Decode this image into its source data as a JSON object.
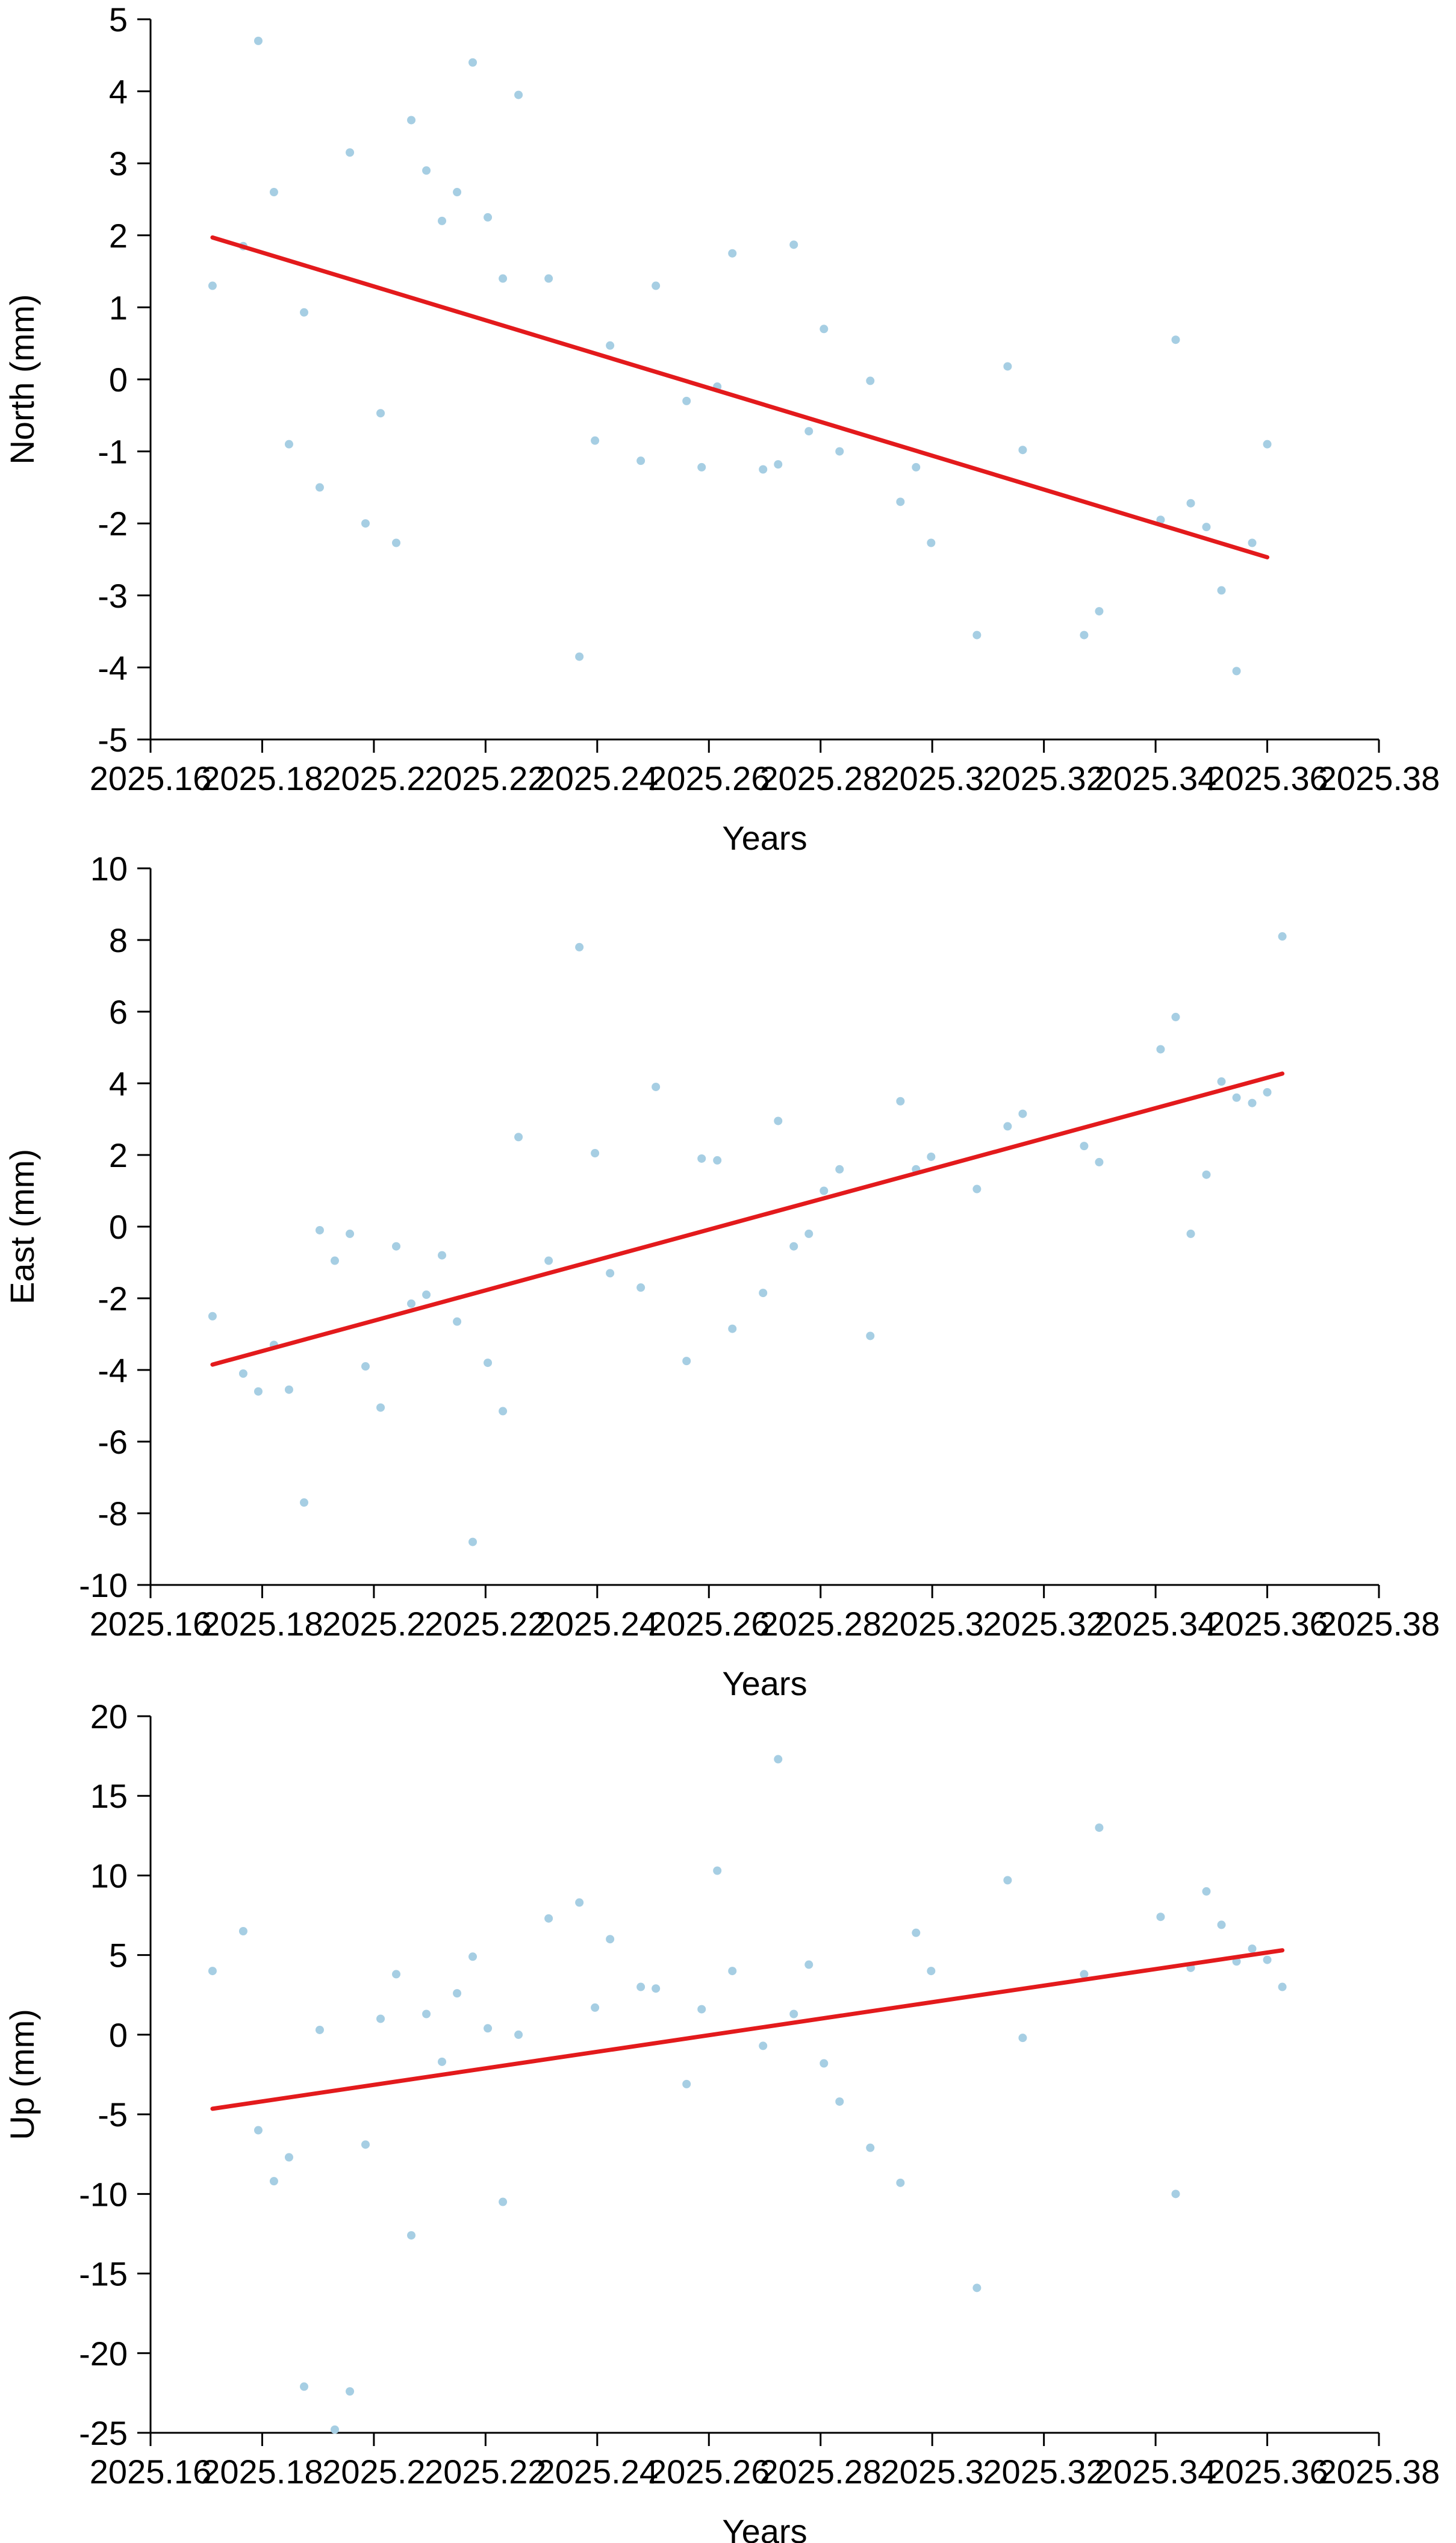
{
  "colors": {
    "points": "#a6cee3",
    "trend": "#e31a1c",
    "axis": "#000000"
  },
  "chart_data": [
    {
      "type": "scatter",
      "xlabel": "Years",
      "ylabel": "North (mm)",
      "xlim": [
        2025.16,
        2025.38
      ],
      "ylim": [
        -5,
        5
      ],
      "xticks": [
        2025.16,
        2025.18,
        2025.2,
        2025.22,
        2025.24,
        2025.26,
        2025.28,
        2025.3,
        2025.32,
        2025.34,
        2025.36,
        2025.38
      ],
      "xtick_labels": [
        "2025.16",
        "2025.18",
        "2025.2",
        "2025.22",
        "2025.24",
        "2025.26",
        "2025.28",
        "2025.3",
        "2025.32",
        "2025.34",
        "2025.36",
        "2025.38"
      ],
      "yticks": [
        -5,
        -4,
        -3,
        -2,
        -1,
        0,
        1,
        2,
        3,
        4,
        5
      ],
      "ytick_labels": [
        "-5",
        "-4",
        "-3",
        "-2",
        "-1",
        "0",
        "1",
        "2",
        "3",
        "4",
        "5"
      ],
      "points": [
        [
          2025.1711,
          1.3
        ],
        [
          2025.1766,
          1.85
        ],
        [
          2025.1793,
          4.7
        ],
        [
          2025.1821,
          2.6
        ],
        [
          2025.1848,
          -0.9
        ],
        [
          2025.1875,
          0.93
        ],
        [
          2025.1903,
          -1.5
        ],
        [
          2025.1957,
          3.15
        ],
        [
          2025.1985,
          -2.0
        ],
        [
          2025.2012,
          -0.47
        ],
        [
          2025.204,
          -2.27
        ],
        [
          2025.2067,
          3.6
        ],
        [
          2025.2094,
          2.9
        ],
        [
          2025.2122,
          2.2
        ],
        [
          2025.2149,
          2.6
        ],
        [
          2025.2177,
          4.4
        ],
        [
          2025.2204,
          2.25
        ],
        [
          2025.2231,
          1.4
        ],
        [
          2025.2259,
          3.95
        ],
        [
          2025.2313,
          1.4
        ],
        [
          2025.2368,
          -3.85
        ],
        [
          2025.2396,
          -0.85
        ],
        [
          2025.2423,
          0.47
        ],
        [
          2025.2478,
          -1.13
        ],
        [
          2025.2505,
          1.3
        ],
        [
          2025.256,
          -0.3
        ],
        [
          2025.2587,
          -1.22
        ],
        [
          2025.2615,
          -0.1
        ],
        [
          2025.2642,
          1.75
        ],
        [
          2025.2697,
          -1.25
        ],
        [
          2025.2724,
          -1.18
        ],
        [
          2025.2752,
          1.87
        ],
        [
          2025.2779,
          -0.72
        ],
        [
          2025.2806,
          0.7
        ],
        [
          2025.2834,
          -1.0
        ],
        [
          2025.2889,
          -0.02
        ],
        [
          2025.2943,
          -1.7
        ],
        [
          2025.2971,
          -1.22
        ],
        [
          2025.2998,
          -2.27
        ],
        [
          2025.308,
          -3.55
        ],
        [
          2025.3135,
          0.18
        ],
        [
          2025.3162,
          -0.98
        ],
        [
          2025.3272,
          -3.55
        ],
        [
          2025.3299,
          -3.22
        ],
        [
          2025.3409,
          -1.95
        ],
        [
          2025.3436,
          0.55
        ],
        [
          2025.3463,
          -1.72
        ],
        [
          2025.3491,
          -2.05
        ],
        [
          2025.3518,
          -2.93
        ],
        [
          2025.3545,
          -4.05
        ],
        [
          2025.3573,
          -2.27
        ],
        [
          2025.36,
          -0.9
        ]
      ],
      "trend": {
        "x": [
          2025.1711,
          2025.36
        ],
        "y": [
          1.97,
          -2.47
        ]
      }
    },
    {
      "type": "scatter",
      "xlabel": "Years",
      "ylabel": "East (mm)",
      "xlim": [
        2025.16,
        2025.38
      ],
      "ylim": [
        -10,
        10
      ],
      "xticks": [
        2025.16,
        2025.18,
        2025.2,
        2025.22,
        2025.24,
        2025.26,
        2025.28,
        2025.3,
        2025.32,
        2025.34,
        2025.36,
        2025.38
      ],
      "xtick_labels": [
        "2025.16",
        "2025.18",
        "2025.2",
        "2025.22",
        "2025.24",
        "2025.26",
        "2025.28",
        "2025.3",
        "2025.32",
        "2025.34",
        "2025.36",
        "2025.38"
      ],
      "yticks": [
        -10,
        -8,
        -6,
        -4,
        -2,
        0,
        2,
        4,
        6,
        8,
        10
      ],
      "ytick_labels": [
        "-10",
        "-8",
        "-6",
        "-4",
        "-2",
        "0",
        "2",
        "4",
        "6",
        "8",
        "10"
      ],
      "points": [
        [
          2025.1711,
          -2.5
        ],
        [
          2025.1766,
          -4.1
        ],
        [
          2025.1793,
          -4.6
        ],
        [
          2025.1821,
          -3.3
        ],
        [
          2025.1848,
          -4.55
        ],
        [
          2025.1875,
          -7.7
        ],
        [
          2025.1903,
          -0.1
        ],
        [
          2025.193,
          -0.95
        ],
        [
          2025.1957,
          -0.2
        ],
        [
          2025.1985,
          -3.9
        ],
        [
          2025.2012,
          -5.05
        ],
        [
          2025.204,
          -0.55
        ],
        [
          2025.2067,
          -2.15
        ],
        [
          2025.2094,
          -1.9
        ],
        [
          2025.2122,
          -0.8
        ],
        [
          2025.2149,
          -2.65
        ],
        [
          2025.2177,
          -8.8
        ],
        [
          2025.2204,
          -3.8
        ],
        [
          2025.2231,
          -5.15
        ],
        [
          2025.2259,
          2.5
        ],
        [
          2025.2313,
          -0.95
        ],
        [
          2025.2368,
          7.8
        ],
        [
          2025.2396,
          2.05
        ],
        [
          2025.2423,
          -1.3
        ],
        [
          2025.2478,
          -1.7
        ],
        [
          2025.2505,
          3.9
        ],
        [
          2025.256,
          -3.75
        ],
        [
          2025.2587,
          1.9
        ],
        [
          2025.2615,
          1.85
        ],
        [
          2025.2642,
          -2.85
        ],
        [
          2025.2697,
          -1.85
        ],
        [
          2025.2724,
          2.95
        ],
        [
          2025.2752,
          -0.55
        ],
        [
          2025.2779,
          -0.2
        ],
        [
          2025.2806,
          1.0
        ],
        [
          2025.2834,
          1.6
        ],
        [
          2025.2889,
          -3.05
        ],
        [
          2025.2943,
          3.5
        ],
        [
          2025.2971,
          1.6
        ],
        [
          2025.2998,
          1.95
        ],
        [
          2025.308,
          1.05
        ],
        [
          2025.3135,
          2.8
        ],
        [
          2025.3162,
          3.15
        ],
        [
          2025.3272,
          2.25
        ],
        [
          2025.3299,
          1.8
        ],
        [
          2025.3409,
          4.95
        ],
        [
          2025.3436,
          5.85
        ],
        [
          2025.3463,
          -0.2
        ],
        [
          2025.3491,
          1.45
        ],
        [
          2025.3518,
          4.05
        ],
        [
          2025.3545,
          3.6
        ],
        [
          2025.3573,
          3.45
        ],
        [
          2025.36,
          3.75
        ],
        [
          2025.3627,
          8.1
        ]
      ],
      "trend": {
        "x": [
          2025.1711,
          2025.3627
        ],
        "y": [
          -3.85,
          4.27
        ]
      }
    },
    {
      "type": "scatter",
      "xlabel": "Years",
      "ylabel": "Up (mm)",
      "xlim": [
        2025.16,
        2025.38
      ],
      "ylim": [
        -25,
        20
      ],
      "xticks": [
        2025.16,
        2025.18,
        2025.2,
        2025.22,
        2025.24,
        2025.26,
        2025.28,
        2025.3,
        2025.32,
        2025.34,
        2025.36,
        2025.38
      ],
      "xtick_labels": [
        "2025.16",
        "2025.18",
        "2025.2",
        "2025.22",
        "2025.24",
        "2025.26",
        "2025.28",
        "2025.3",
        "2025.32",
        "2025.34",
        "2025.36",
        "2025.38"
      ],
      "yticks": [
        -25,
        -20,
        -15,
        -10,
        -5,
        0,
        5,
        10,
        15,
        20
      ],
      "ytick_labels": [
        "-25",
        "-20",
        "-15",
        "-10",
        "-5",
        "0",
        "5",
        "10",
        "15",
        "20"
      ],
      "points": [
        [
          2025.1711,
          4.0
        ],
        [
          2025.1766,
          6.5
        ],
        [
          2025.1793,
          -6.0
        ],
        [
          2025.1821,
          -9.2
        ],
        [
          2025.1848,
          -7.7
        ],
        [
          2025.1875,
          -22.1
        ],
        [
          2025.1903,
          0.3
        ],
        [
          2025.193,
          -24.8
        ],
        [
          2025.1957,
          -22.4
        ],
        [
          2025.1985,
          -6.9
        ],
        [
          2025.2012,
          1.0
        ],
        [
          2025.204,
          3.8
        ],
        [
          2025.2067,
          -12.6
        ],
        [
          2025.2094,
          1.3
        ],
        [
          2025.2122,
          -1.7
        ],
        [
          2025.2149,
          2.6
        ],
        [
          2025.2177,
          4.9
        ],
        [
          2025.2204,
          0.4
        ],
        [
          2025.2231,
          -10.5
        ],
        [
          2025.2259,
          0.0
        ],
        [
          2025.2313,
          7.3
        ],
        [
          2025.2368,
          8.3
        ],
        [
          2025.2396,
          1.7
        ],
        [
          2025.2423,
          6.0
        ],
        [
          2025.2478,
          3.0
        ],
        [
          2025.2505,
          2.9
        ],
        [
          2025.256,
          -3.1
        ],
        [
          2025.2587,
          1.6
        ],
        [
          2025.2615,
          10.3
        ],
        [
          2025.2642,
          4.0
        ],
        [
          2025.2697,
          -0.7
        ],
        [
          2025.2724,
          17.3
        ],
        [
          2025.2752,
          1.3
        ],
        [
          2025.2779,
          4.4
        ],
        [
          2025.2806,
          -1.8
        ],
        [
          2025.2834,
          -4.2
        ],
        [
          2025.2889,
          -7.1
        ],
        [
          2025.2943,
          -9.3
        ],
        [
          2025.2971,
          6.4
        ],
        [
          2025.2998,
          4.0
        ],
        [
          2025.308,
          -15.9
        ],
        [
          2025.3135,
          9.7
        ],
        [
          2025.3162,
          -0.2
        ],
        [
          2025.3272,
          3.8
        ],
        [
          2025.3299,
          13.0
        ],
        [
          2025.3409,
          7.4
        ],
        [
          2025.3436,
          -10.0
        ],
        [
          2025.3463,
          4.2
        ],
        [
          2025.3491,
          9.0
        ],
        [
          2025.3518,
          6.9
        ],
        [
          2025.3545,
          4.6
        ],
        [
          2025.3573,
          5.4
        ],
        [
          2025.36,
          4.7
        ],
        [
          2025.3627,
          3.0
        ]
      ],
      "trend": {
        "x": [
          2025.1711,
          2025.3627
        ],
        "y": [
          -4.65,
          5.3
        ]
      }
    }
  ]
}
